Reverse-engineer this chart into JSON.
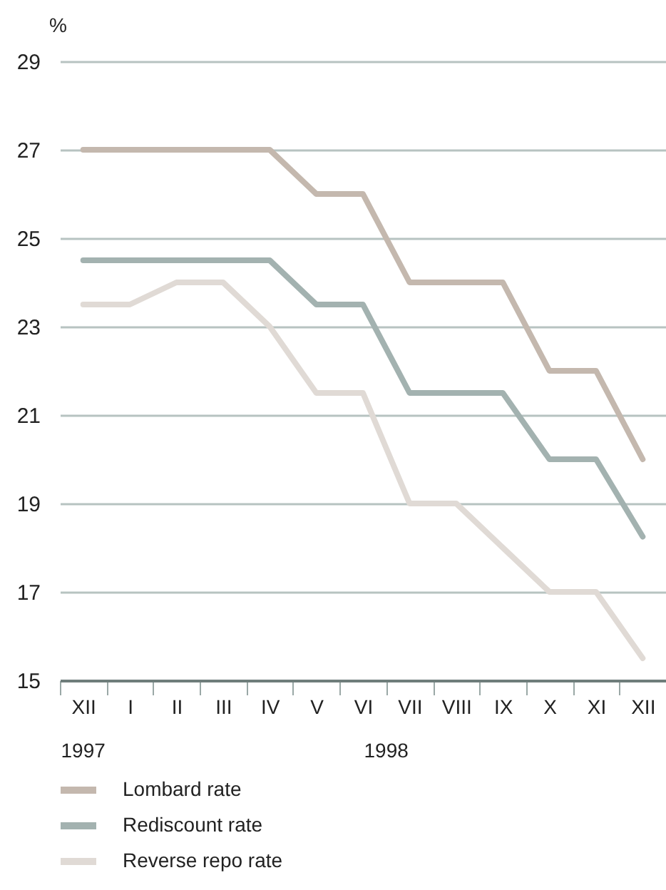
{
  "chart_data": {
    "type": "line",
    "ylabel": "%",
    "categories": [
      "XII",
      "I",
      "II",
      "III",
      "IV",
      "V",
      "VI",
      "VII",
      "VIII",
      "IX",
      "X",
      "XI",
      "XII"
    ],
    "series": [
      {
        "name": "Lombard rate",
        "color": "#c4b8ae",
        "values": [
          27,
          27,
          27,
          27,
          27,
          26,
          26,
          24,
          24,
          24,
          22,
          22,
          20
        ]
      },
      {
        "name": "Rediscount rate",
        "color": "#a3b2b0",
        "values": [
          24.5,
          24.5,
          24.5,
          24.5,
          24.5,
          23.5,
          23.5,
          21.5,
          21.5,
          21.5,
          20,
          20,
          18.25
        ]
      },
      {
        "name": "Reverse repo rate",
        "color": "#e0dad5",
        "values": [
          23.5,
          23.5,
          24,
          24,
          23,
          21.5,
          21.5,
          19,
          19,
          18,
          17,
          17,
          15.5
        ]
      }
    ],
    "ylim": [
      15,
      29
    ],
    "yticks": [
      15,
      17,
      19,
      21,
      23,
      25,
      27,
      29
    ],
    "grid": "y",
    "legend": "bottom",
    "marker": "none",
    "line_style": "solid",
    "annotations": [
      "1997",
      "1998"
    ]
  }
}
